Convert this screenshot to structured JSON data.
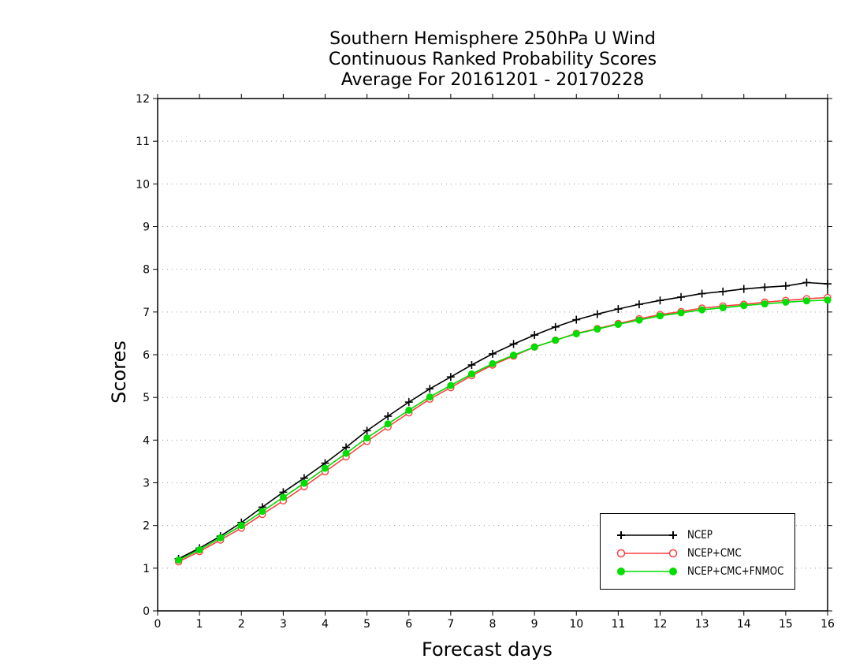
{
  "chart_data": {
    "type": "line",
    "title": [
      "Southern Hemisphere 250hPa U Wind",
      "Continuous Ranked Probability Scores",
      "Average For 20161201 - 20170228"
    ],
    "xlabel": "Forecast days",
    "ylabel": "Scores",
    "xlim": [
      0,
      16
    ],
    "ylim": [
      0,
      12
    ],
    "xticks": [
      "0",
      "1",
      "2",
      "3",
      "4",
      "5",
      "6",
      "7",
      "8",
      "9",
      "10",
      "11",
      "12",
      "13",
      "14",
      "15",
      "16"
    ],
    "yticks": [
      "0",
      "1",
      "2",
      "3",
      "4",
      "5",
      "6",
      "7",
      "8",
      "9",
      "10",
      "11",
      "12"
    ],
    "grid": "horizontal dotted",
    "legend_position": "bottom-right",
    "x": [
      0.5,
      1,
      1.5,
      2,
      2.5,
      3,
      3.5,
      4,
      4.5,
      5,
      5.5,
      6,
      6.5,
      7,
      7.5,
      8,
      8.5,
      9,
      9.5,
      10,
      10.5,
      11,
      11.5,
      12,
      12.5,
      13,
      13.5,
      14,
      14.5,
      15,
      15.5,
      16
    ],
    "series": [
      {
        "name": "NCEP",
        "color": "#000000",
        "marker": "plus",
        "values": [
          1.22,
          1.47,
          1.75,
          2.07,
          2.43,
          2.78,
          3.11,
          3.46,
          3.83,
          4.22,
          4.56,
          4.89,
          5.2,
          5.48,
          5.76,
          6.02,
          6.25,
          6.46,
          6.65,
          6.82,
          6.95,
          7.07,
          7.18,
          7.27,
          7.35,
          7.43,
          7.48,
          7.54,
          7.58,
          7.61,
          7.69,
          7.66
        ]
      },
      {
        "name": "NCEP+CMC",
        "color": "#ff4040",
        "marker": "open-circle",
        "values": [
          1.15,
          1.39,
          1.66,
          1.94,
          2.26,
          2.58,
          2.91,
          3.26,
          3.61,
          3.97,
          4.31,
          4.64,
          4.96,
          5.23,
          5.51,
          5.76,
          5.97,
          6.18,
          6.34,
          6.5,
          6.61,
          6.73,
          6.84,
          6.94,
          7.01,
          7.09,
          7.14,
          7.18,
          7.23,
          7.27,
          7.31,
          7.34
        ]
      },
      {
        "name": "NCEP+CMC+FNMOC",
        "color": "#00dd00",
        "marker": "filled-circle",
        "values": [
          1.19,
          1.43,
          1.71,
          2.0,
          2.33,
          2.66,
          2.99,
          3.34,
          3.69,
          4.05,
          4.38,
          4.7,
          5.01,
          5.28,
          5.55,
          5.79,
          5.99,
          6.18,
          6.34,
          6.49,
          6.6,
          6.71,
          6.81,
          6.91,
          6.98,
          7.05,
          7.1,
          7.15,
          7.19,
          7.23,
          7.26,
          7.28
        ]
      }
    ]
  }
}
